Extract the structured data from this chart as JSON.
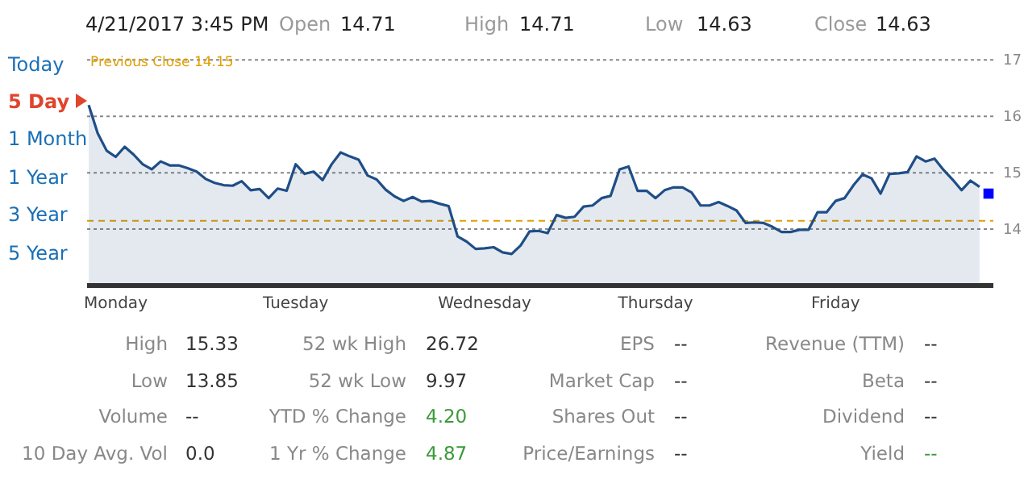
{
  "chart_data": {
    "type": "area",
    "title": "4/21/2017 3:45 PM",
    "categories": [
      null,
      null,
      null,
      "Monday",
      null,
      null,
      null,
      null,
      null,
      null,
      null,
      null,
      null,
      null,
      null,
      null,
      null,
      null,
      null,
      null,
      null,
      null,
      null,
      "Tuesday",
      null,
      null,
      null,
      null,
      null,
      null,
      null,
      null,
      null,
      null,
      null,
      null,
      null,
      null,
      null,
      null,
      null,
      null,
      null,
      null,
      "Wednesday",
      null,
      null,
      null,
      null,
      null,
      null,
      null,
      null,
      null,
      null,
      null,
      null,
      null,
      null,
      null,
      null,
      null,
      null,
      "Thursday",
      null,
      null,
      null,
      null,
      null,
      null,
      null,
      null,
      null,
      null,
      null,
      null,
      null,
      null,
      null,
      null,
      null,
      null,
      null,
      "Friday",
      null,
      null,
      null,
      null,
      null,
      null,
      null,
      null,
      null,
      null,
      null,
      null,
      null,
      null,
      null,
      null,
      null
    ],
    "ylim": [
      13.03,
      17.06
    ],
    "yticks": [
      14,
      15,
      16,
      17
    ],
    "grid": "y",
    "ref_lines": [
      {
        "axis": "y",
        "value": 14.15,
        "label": "Previous Close 14.15",
        "color": "#e0a000",
        "line_style": "dashed"
      }
    ],
    "series": [
      {
        "color": "#1f4e87",
        "marker": "none",
        "values": [
          16.2,
          15.7,
          15.39,
          15.28,
          15.46,
          15.32,
          15.15,
          15.06,
          15.2,
          15.13,
          15.13,
          15.08,
          15.02,
          14.89,
          14.82,
          14.78,
          14.77,
          14.85,
          14.69,
          14.71,
          14.55,
          14.72,
          14.68,
          15.15,
          14.98,
          15.02,
          14.87,
          15.15,
          15.36,
          15.29,
          15.23,
          14.95,
          14.88,
          14.7,
          14.58,
          14.5,
          14.57,
          14.49,
          14.5,
          14.45,
          14.41,
          13.87,
          13.78,
          13.65,
          13.66,
          13.68,
          13.59,
          13.56,
          13.71,
          13.96,
          13.97,
          13.93,
          14.25,
          14.2,
          14.22,
          14.4,
          14.42,
          14.55,
          14.59,
          15.06,
          15.11,
          14.68,
          14.68,
          14.55,
          14.69,
          14.74,
          14.74,
          14.65,
          14.42,
          14.42,
          14.48,
          14.41,
          14.33,
          14.11,
          14.12,
          14.11,
          14.04,
          13.95,
          13.95,
          13.99,
          13.99,
          14.3,
          14.3,
          14.5,
          14.55,
          14.78,
          14.97,
          14.9,
          14.63,
          14.98,
          14.99,
          15.01,
          15.29,
          15.2,
          15.25,
          15.05,
          14.88,
          14.69,
          14.86,
          14.75,
          null
        ]
      },
      {
        "type": "scatter",
        "color": "#0000ff",
        "marker": "square",
        "values": [
          null,
          null,
          null,
          null,
          null,
          null,
          null,
          null,
          null,
          null,
          null,
          null,
          null,
          null,
          null,
          null,
          null,
          null,
          null,
          null,
          null,
          null,
          null,
          null,
          null,
          null,
          null,
          null,
          null,
          null,
          null,
          null,
          null,
          null,
          null,
          null,
          null,
          null,
          null,
          null,
          null,
          null,
          null,
          null,
          null,
          null,
          null,
          null,
          null,
          null,
          null,
          null,
          null,
          null,
          null,
          null,
          null,
          null,
          null,
          null,
          null,
          null,
          null,
          null,
          null,
          null,
          null,
          null,
          null,
          null,
          null,
          null,
          null,
          null,
          null,
          null,
          null,
          null,
          null,
          null,
          null,
          null,
          null,
          null,
          null,
          null,
          null,
          null,
          null,
          null,
          null,
          null,
          null,
          null,
          null,
          null,
          null,
          null,
          null,
          null,
          14.63
        ]
      }
    ],
    "annotations": [
      "Open",
      "14.71",
      "High",
      "14.71",
      "Low",
      "14.63",
      "Close",
      "14.63",
      "Today",
      "5 Day",
      "1 Month",
      "1 Year",
      "3 Year",
      "5 Year",
      "High",
      "15.33",
      "Low",
      "13.85",
      "Volume",
      "--",
      "10 Day Avg. Vol",
      "0.0",
      "52 wk High",
      "26.72",
      "52 wk Low",
      "9.97",
      "YTD % Change",
      "4.20",
      "1 Yr % Change",
      "4.87",
      "EPS",
      "--",
      "Market Cap",
      "--",
      "Shares Out",
      "--",
      "Price/Earnings",
      "--",
      "Revenue (TTM)",
      "--",
      "Beta",
      "--",
      "Dividend",
      "--",
      "Yield",
      "--"
    ]
  }
}
